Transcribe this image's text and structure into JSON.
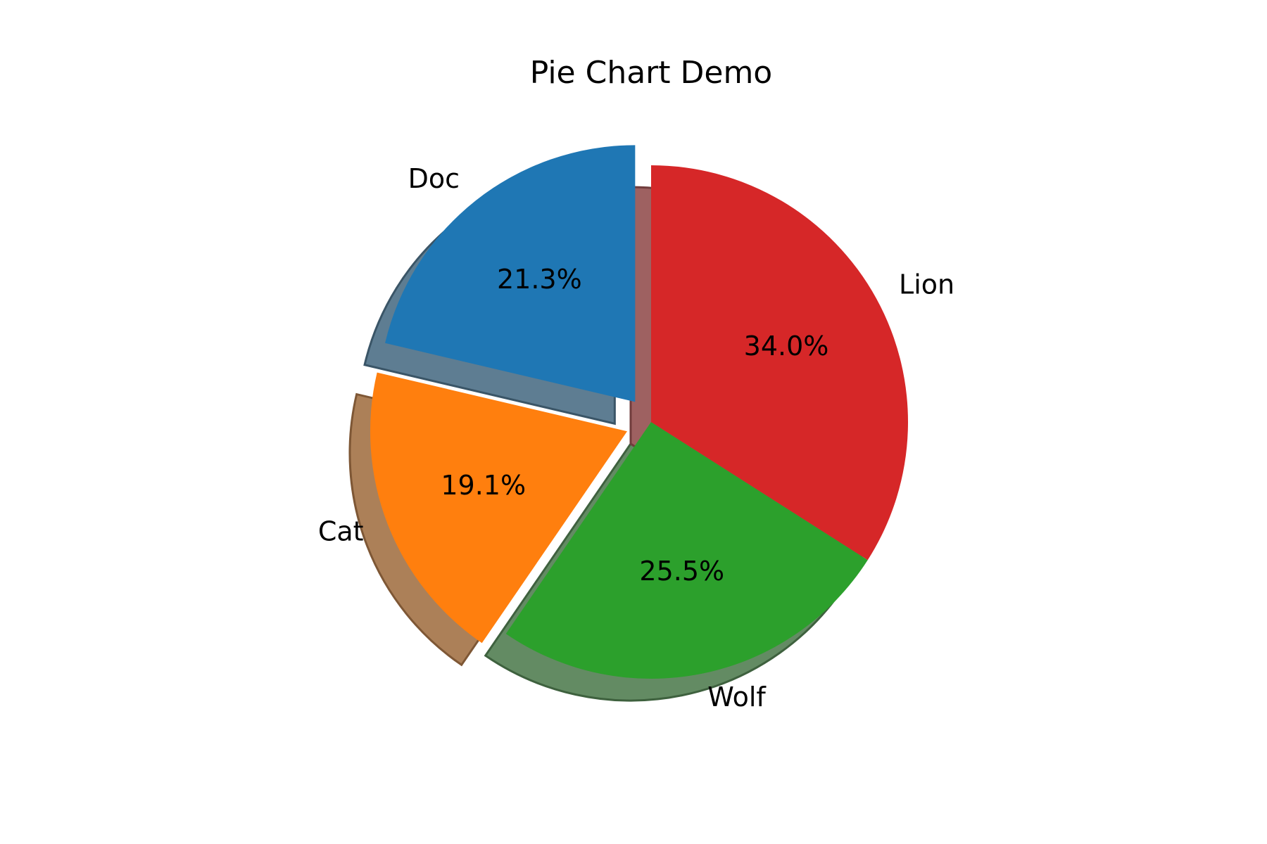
{
  "chart_data": {
    "type": "pie",
    "title": "Pie Chart Demo",
    "labels": [
      "Doc",
      "Cat",
      "Wolf",
      "Lion"
    ],
    "values": [
      21.3,
      19.1,
      25.5,
      34.0
    ],
    "percent_labels": [
      "21.3%",
      "19.1%",
      "25.5%",
      "34.0%"
    ],
    "colors": [
      "#1f77b4",
      "#ff7f0e",
      "#2ca02c",
      "#d62728"
    ],
    "explode": [
      0.1,
      0.1,
      0,
      0
    ],
    "start_angle_deg": 90,
    "direction": "counterclockwise",
    "shadow": true,
    "autopct": true
  }
}
